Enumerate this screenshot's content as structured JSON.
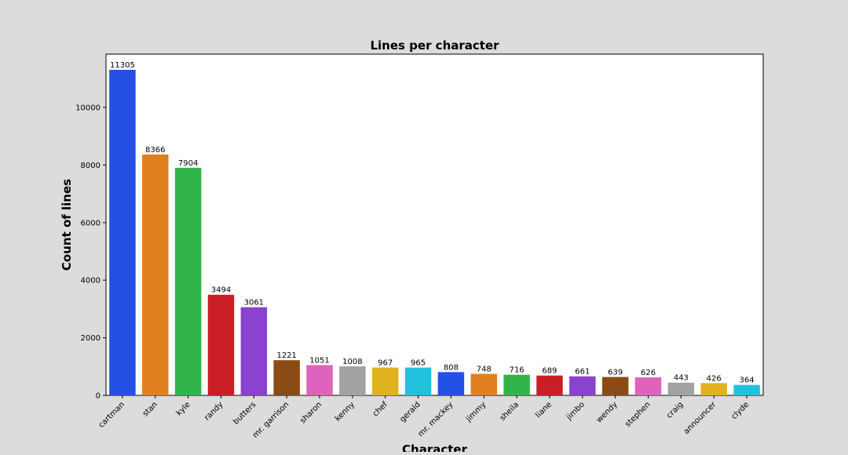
{
  "chart_data": {
    "type": "bar",
    "title": "Lines per character",
    "xlabel": "Character",
    "ylabel": "Count of lines",
    "ylim": [
      0,
      11850
    ],
    "yticks": [
      0,
      2000,
      4000,
      6000,
      8000,
      10000
    ],
    "grid": false,
    "categories": [
      "cartman",
      "stan",
      "kyle",
      "randy",
      "butters",
      "mr. garrison",
      "sharon",
      "kenny",
      "chef",
      "gerald",
      "mr. mackey",
      "jimmy",
      "sheila",
      "liane",
      "jimbo",
      "wendy",
      "stephen",
      "craig",
      "announcer",
      "clyde"
    ],
    "values": [
      11305,
      8366,
      7904,
      3494,
      3061,
      1221,
      1051,
      1008,
      967,
      965,
      808,
      748,
      716,
      689,
      661,
      639,
      626,
      443,
      426,
      364
    ],
    "colors": [
      "#2450e4",
      "#e07f1f",
      "#30b44a",
      "#cb1e27",
      "#8b42cf",
      "#8b4b14",
      "#dd63bc",
      "#a2a2a2",
      "#e0b21f",
      "#21c2de",
      "#2450e4",
      "#e07f1f",
      "#30b44a",
      "#cb1e27",
      "#8b42cf",
      "#8b4b14",
      "#dd63bc",
      "#a2a2a2",
      "#e0b21f",
      "#21c2de"
    ]
  }
}
